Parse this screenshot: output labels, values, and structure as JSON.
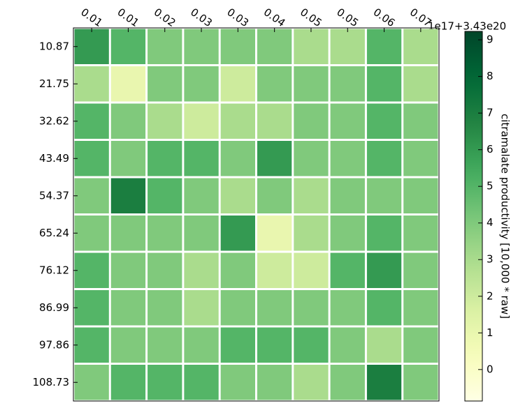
{
  "chart_data": {
    "type": "heatmap",
    "x": [
      "0.01",
      "0.01",
      "0.02",
      "0.03",
      "0.03",
      "0.04",
      "0.05",
      "0.05",
      "0.06",
      "0.07"
    ],
    "y": [
      "10.87",
      "21.75",
      "32.62",
      "43.49",
      "54.37",
      "65.24",
      "76.12",
      "86.99",
      "97.86",
      "108.73"
    ],
    "values": [
      [
        6,
        5,
        4,
        4,
        4,
        4,
        3,
        3,
        5,
        3
      ],
      [
        3,
        1,
        4,
        4,
        2,
        4,
        4,
        4,
        5,
        3
      ],
      [
        5,
        4,
        3,
        2,
        3,
        3,
        4,
        4,
        5,
        4
      ],
      [
        5,
        4,
        5,
        5,
        4,
        6,
        4,
        4,
        5,
        4
      ],
      [
        4,
        7,
        5,
        4,
        3,
        4,
        3,
        4,
        4,
        4
      ],
      [
        4,
        4,
        4,
        4,
        6,
        1,
        3,
        4,
        5,
        4
      ],
      [
        5,
        4,
        4,
        3,
        4,
        2,
        2,
        5,
        6,
        4
      ],
      [
        5,
        4,
        4,
        3,
        4,
        4,
        4,
        4,
        5,
        4
      ],
      [
        5,
        4,
        4,
        4,
        5,
        5,
        5,
        4,
        3,
        4
      ],
      [
        4,
        5,
        5,
        5,
        4,
        4,
        3,
        4,
        7,
        4
      ]
    ],
    "colors": [
      "#ffffe5",
      "#f7fcb9",
      "#d9f0a3",
      "#addd8e",
      "#78c679",
      "#41ab5d",
      "#238443",
      "#006837",
      "#004529"
    ],
    "clim": [
      -0.86,
      9.23
    ],
    "cticks": [
      0,
      1,
      2,
      3,
      4,
      5,
      6,
      7,
      8,
      9
    ],
    "colorbar_offset": "1e17+3.43e20",
    "colorbar_label": "citramalate productivity [10,000 * raw]"
  }
}
